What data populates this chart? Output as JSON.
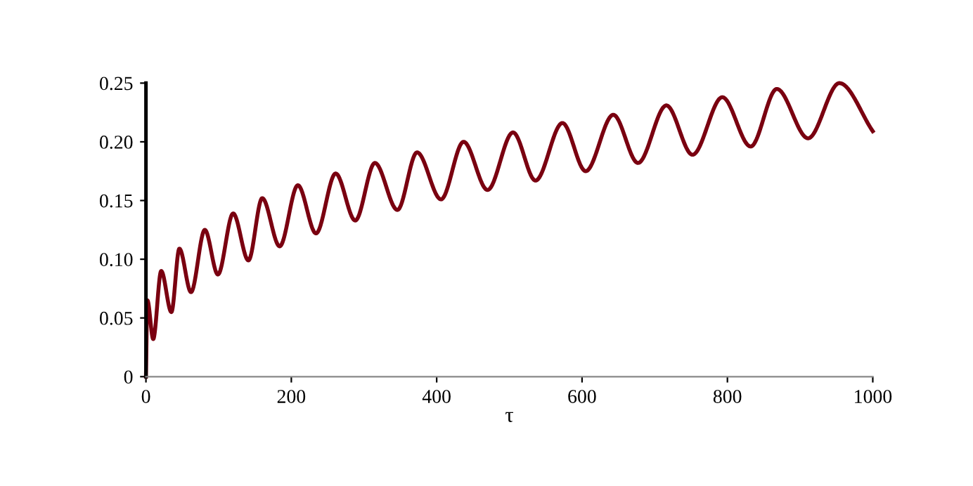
{
  "chart_data": {
    "type": "line",
    "xlabel": "τ",
    "x": [
      0,
      2,
      10,
      21,
      35,
      46,
      62,
      81,
      99,
      120,
      141,
      160,
      184,
      209,
      234,
      261,
      288,
      315,
      346,
      373,
      406,
      437,
      470,
      505,
      536,
      573,
      605,
      643,
      677,
      716,
      752,
      793,
      832,
      868,
      911,
      954,
      1000
    ],
    "series": [
      {
        "color": "#7a0010",
        "values": [
          0,
          0.065,
          0.032,
          0.09,
          0.055,
          0.109,
          0.072,
          0.125,
          0.087,
          0.139,
          0.099,
          0.152,
          0.111,
          0.163,
          0.122,
          0.173,
          0.133,
          0.182,
          0.142,
          0.191,
          0.151,
          0.2,
          0.159,
          0.208,
          0.167,
          0.216,
          0.175,
          0.223,
          0.182,
          0.231,
          0.189,
          0.238,
          0.196,
          0.245,
          0.203,
          0.25,
          0.209
        ]
      }
    ],
    "xlim": [
      0,
      1000
    ],
    "ylim": [
      0,
      0.25
    ],
    "xticks": [
      0,
      200,
      400,
      600,
      800,
      1000
    ],
    "yticks": [
      0,
      {
        "value": 0.05,
        "label": "0.05"
      },
      {
        "value": 0.1,
        "label": "0.10"
      },
      {
        "value": 0.15,
        "label": "0.15"
      },
      {
        "value": 0.2,
        "label": "0.20"
      },
      {
        "value": 0.25,
        "label": "0.25"
      }
    ],
    "grid": false,
    "legend": false,
    "marker": "none",
    "line_style": "solid"
  }
}
